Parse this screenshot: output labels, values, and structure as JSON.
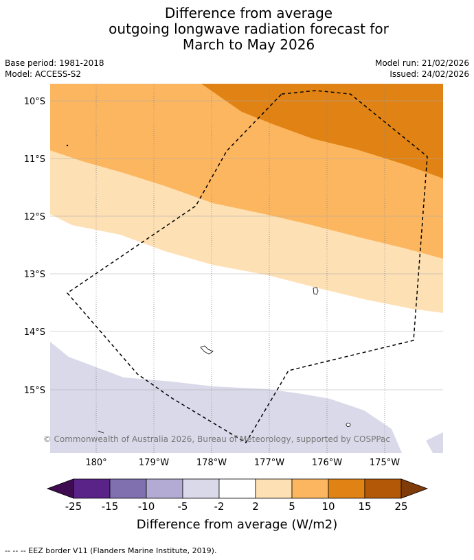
{
  "title": {
    "line1": "Difference from average",
    "line2": "outgoing longwave radiation forecast for",
    "line3": "March to May 2026"
  },
  "meta": {
    "base_period": "Base period: 1981-2018",
    "model": "Model: ACCESS-S2",
    "model_run": "Model run: 21/02/2026",
    "issued": "Issued: 24/02/2026"
  },
  "map": {
    "lat_labels": [
      "10°S",
      "11°S",
      "12°S",
      "13°S",
      "14°S",
      "15°S"
    ],
    "lon_labels": [
      "180°",
      "179°W",
      "178°W",
      "177°W",
      "176°W",
      "175°W"
    ],
    "copyright": "© Commonwealth of Australia 2026, Bureau of Meteorology, supported by COSPPac"
  },
  "legend": {
    "ticks": [
      "-25",
      "-15",
      "-10",
      "-5",
      "-2",
      "2",
      "5",
      "10",
      "15",
      "25"
    ],
    "colors": [
      "#3f0c52",
      "#5a2387",
      "#8070b0",
      "#b3abd3",
      "#d9d9ea",
      "#ffffff",
      "#fde0b4",
      "#fcb65f",
      "#e08214",
      "#b35806",
      "#7f3b08"
    ],
    "label": "Difference from average (W/m2)"
  },
  "footer": {
    "eez": "--  --  -- EEZ border V11 (Flanders Marine Institute, 2019)."
  }
}
